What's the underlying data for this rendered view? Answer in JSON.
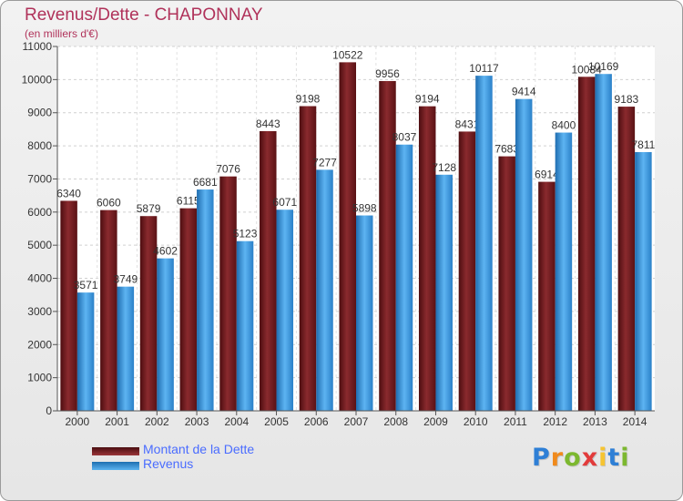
{
  "chart_data": {
    "type": "bar",
    "title": "Revenus/Dette - CHAPONNAY",
    "subtitle": "(en milliers d'€)",
    "categories": [
      "2000",
      "2001",
      "2002",
      "2003",
      "2004",
      "2005",
      "2006",
      "2007",
      "2008",
      "2009",
      "2010",
      "2011",
      "2012",
      "2013",
      "2014"
    ],
    "series": [
      {
        "name": "Montant de la Dette",
        "color": "#7a1f22",
        "values": [
          6340,
          6060,
          5879,
          6115,
          7076,
          8443,
          9198,
          10522,
          9956,
          9194,
          8431,
          7683,
          6914,
          10084,
          9183
        ],
        "labels": [
          "6340",
          "6060",
          "5879",
          "6115",
          "7076",
          "8443",
          "9198",
          "10522",
          "9956",
          "9194",
          "8431",
          "7683",
          "6914",
          "10084",
          "9183"
        ]
      },
      {
        "name": "Revenus",
        "color": "#3b9be3",
        "values": [
          3571,
          3749,
          4602,
          6681,
          5123,
          6071,
          7277,
          5898,
          8037,
          7128,
          10117,
          9414,
          8400,
          10169,
          7811
        ],
        "labels": [
          "3571",
          "3749",
          "4602",
          "6681",
          "5123",
          "6071",
          "7277",
          "5898",
          "8037",
          "7128",
          "10117",
          "9414",
          "8400",
          "10169",
          "7811"
        ]
      }
    ],
    "ylim": [
      0,
      11000
    ],
    "yticks": [
      "0",
      "1000",
      "2000",
      "3000",
      "4000",
      "5000",
      "6000",
      "7000",
      "8000",
      "9000",
      "10000",
      "11000"
    ],
    "grid": true,
    "legend_position": "bottom-left"
  },
  "logo": {
    "letters": [
      "P",
      "r",
      "o",
      "x",
      "i",
      "t",
      "i"
    ],
    "colors": [
      "#2e7fd6",
      "#f08a1c",
      "#7cb82f",
      "#e23b3b",
      "#f6c431",
      "#2e7fd6",
      "#7cb82f"
    ]
  }
}
